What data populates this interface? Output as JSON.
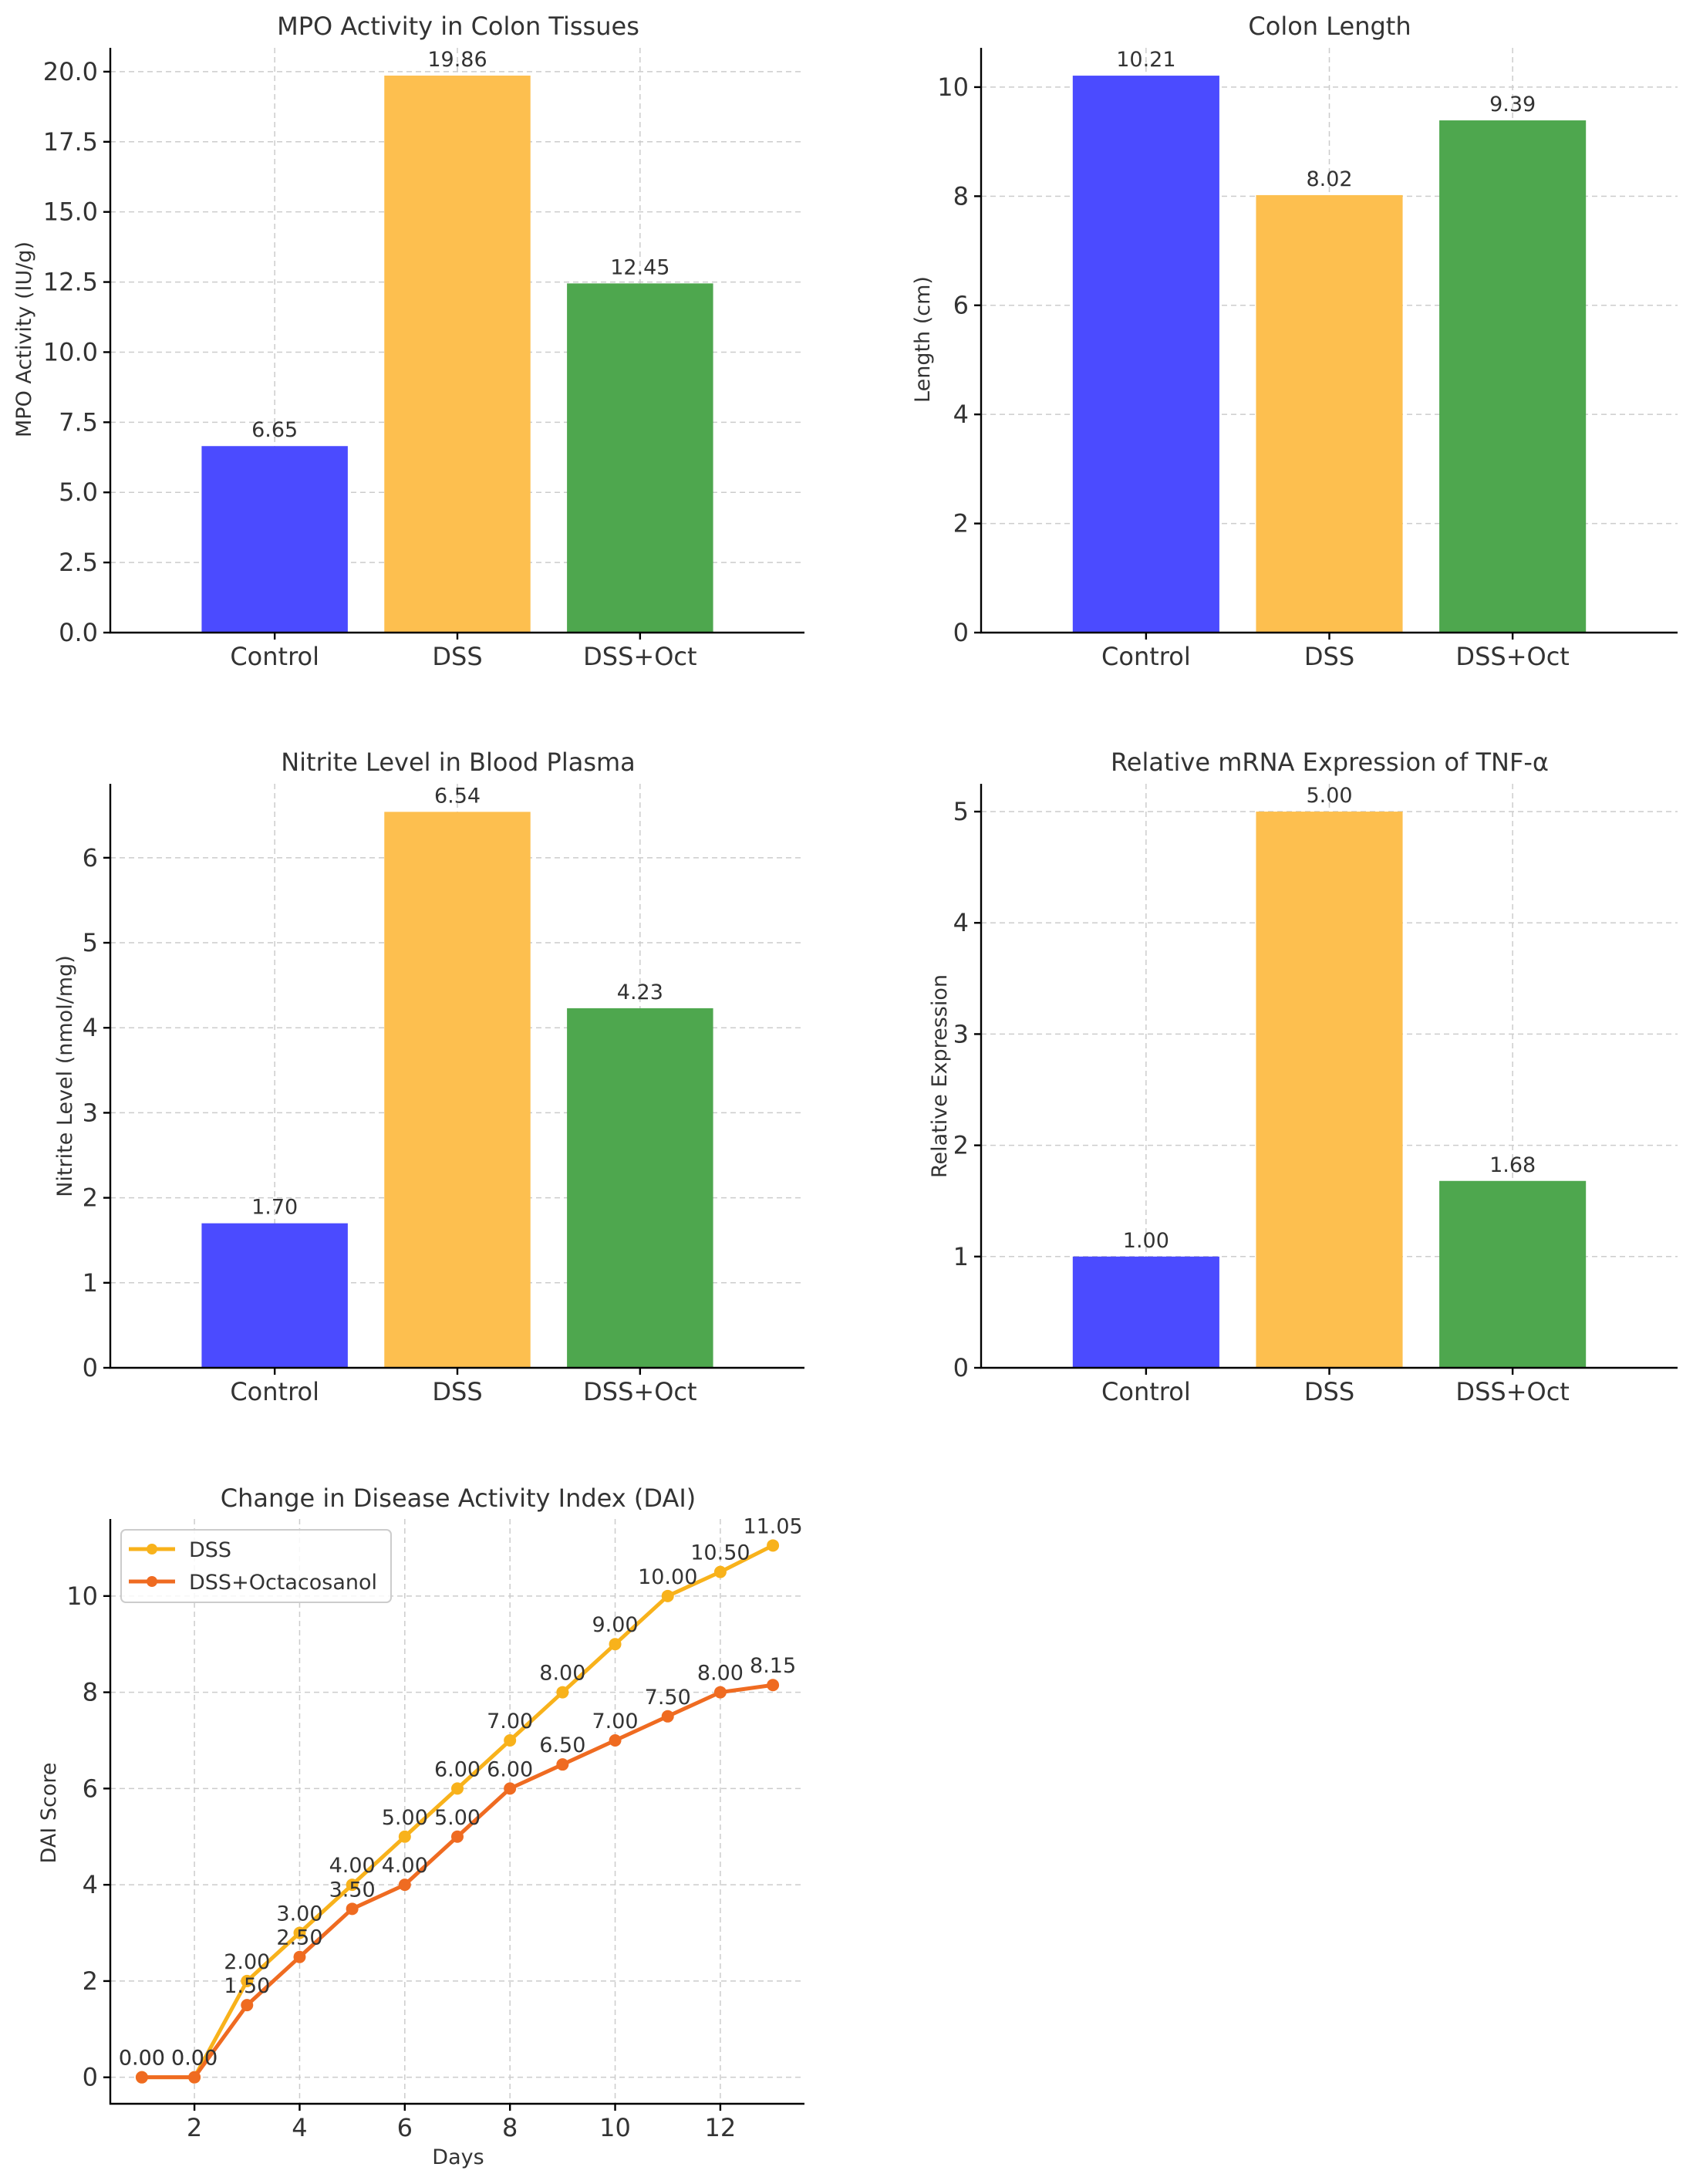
{
  "chart_data": [
    {
      "type": "bar",
      "title": "MPO Activity in Colon Tissues",
      "xlabel": "",
      "ylabel": "MPO Activity (IU/g)",
      "categories": [
        "Control",
        "DSS",
        "DSS+Oct"
      ],
      "values": [
        6.65,
        19.86,
        12.45
      ],
      "labels": [
        "6.65",
        "19.86",
        "12.45"
      ],
      "colors": [
        "#4b4bff",
        "#fdbf4f",
        "#4ea74e"
      ],
      "ylim": [
        0,
        20.85
      ],
      "yticks": [
        0,
        2.5,
        5,
        7.5,
        10,
        12.5,
        15,
        17.5,
        20
      ],
      "ytick_labels": [
        "0.0",
        "2.5",
        "5.0",
        "7.5",
        "10.0",
        "12.5",
        "15.0",
        "17.5",
        "20.0"
      ],
      "grid": true
    },
    {
      "type": "bar",
      "title": "Colon Length",
      "xlabel": "",
      "ylabel": "Length (cm)",
      "categories": [
        "Control",
        "DSS",
        "DSS+Oct"
      ],
      "values": [
        10.21,
        8.02,
        9.39
      ],
      "labels": [
        "10.21",
        "8.02",
        "9.39"
      ],
      "colors": [
        "#4b4bff",
        "#fdbf4f",
        "#4ea74e"
      ],
      "ylim": [
        0,
        10.72
      ],
      "yticks": [
        0,
        2,
        4,
        6,
        8,
        10
      ],
      "ytick_labels": [
        "0",
        "2",
        "4",
        "6",
        "8",
        "10"
      ],
      "grid": true
    },
    {
      "type": "bar",
      "title": "Nitrite Level in Blood Plasma",
      "xlabel": "",
      "ylabel": "Nitrite Level (nmol/mg)",
      "categories": [
        "Control",
        "DSS",
        "DSS+Oct"
      ],
      "values": [
        1.7,
        6.54,
        4.23
      ],
      "labels": [
        "1.70",
        "6.54",
        "4.23"
      ],
      "colors": [
        "#4b4bff",
        "#fdbf4f",
        "#4ea74e"
      ],
      "ylim": [
        0,
        6.87
      ],
      "yticks": [
        0,
        1,
        2,
        3,
        4,
        5,
        6
      ],
      "ytick_labels": [
        "0",
        "1",
        "2",
        "3",
        "4",
        "5",
        "6"
      ],
      "grid": true
    },
    {
      "type": "bar",
      "title": "Relative mRNA Expression of TNF-α",
      "xlabel": "",
      "ylabel": "Relative Expression",
      "categories": [
        "Control",
        "DSS",
        "DSS+Oct"
      ],
      "values": [
        1.0,
        5.0,
        1.68
      ],
      "labels": [
        "1.00",
        "5.00",
        "1.68"
      ],
      "colors": [
        "#4b4bff",
        "#fdbf4f",
        "#4ea74e"
      ],
      "ylim": [
        0,
        5.25
      ],
      "yticks": [
        0,
        1,
        2,
        3,
        4,
        5
      ],
      "ytick_labels": [
        "0",
        "1",
        "2",
        "3",
        "4",
        "5"
      ],
      "grid": true
    },
    {
      "type": "line",
      "title": "Change in Disease Activity Index (DAI)",
      "xlabel": "Days",
      "ylabel": "DAI Score",
      "x": [
        1,
        2,
        3,
        4,
        5,
        6,
        7,
        8,
        9,
        10,
        11,
        12,
        13
      ],
      "xlim": [
        0.4,
        13.6
      ],
      "ylim": [
        -0.55,
        11.6
      ],
      "xticks": [
        2,
        4,
        6,
        8,
        10,
        12
      ],
      "xtick_labels": [
        "2",
        "4",
        "6",
        "8",
        "10",
        "12"
      ],
      "yticks": [
        0,
        2,
        4,
        6,
        8,
        10
      ],
      "ytick_labels": [
        "0",
        "2",
        "4",
        "6",
        "8",
        "10"
      ],
      "grid": true,
      "legend_position": "top-left",
      "series": [
        {
          "name": "DSS",
          "color": "#f8b21b",
          "values": [
            0,
            0,
            2,
            3,
            4,
            5,
            6,
            7,
            8,
            9,
            10,
            10.5,
            11.05
          ],
          "labels": [
            "0.00",
            "0.00",
            "2.00",
            "3.00",
            "4.00",
            "5.00",
            "6.00",
            "7.00",
            "8.00",
            "9.00",
            "10.00",
            "10.50",
            "11.05"
          ]
        },
        {
          "name": "DSS+Octacosanol",
          "color": "#ef6b21",
          "values": [
            0,
            0,
            1.5,
            2.5,
            3.5,
            4,
            5,
            6,
            6.5,
            7,
            7.5,
            8,
            8.15
          ],
          "labels": [
            "0.00",
            "0.00",
            "1.50",
            "2.50",
            "3.50",
            "4.00",
            "5.00",
            "6.00",
            "6.50",
            "7.00",
            "7.50",
            "8.00",
            "8.15"
          ]
        }
      ]
    }
  ]
}
